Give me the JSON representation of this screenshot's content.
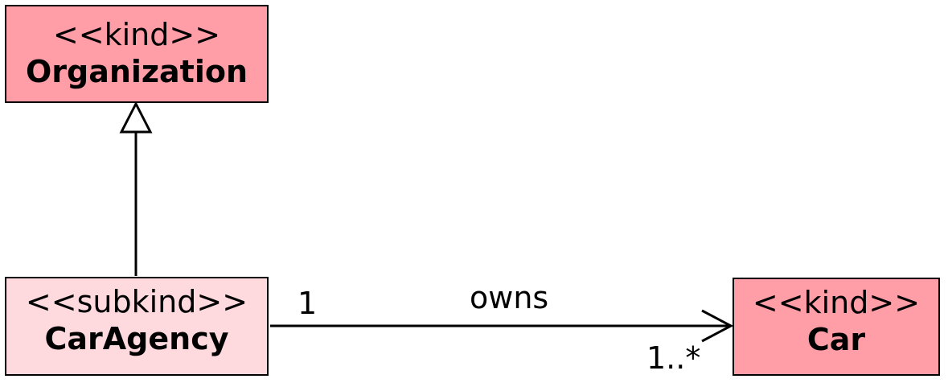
{
  "colors": {
    "kind_fill": "#ff9ea7",
    "subkind_fill": "#fedadf",
    "line": "#000000"
  },
  "classes": {
    "organization": {
      "stereotype": "<<kind>>",
      "name": "Organization"
    },
    "caragency": {
      "stereotype": "<<subkind>>",
      "name": "CarAgency"
    },
    "car": {
      "stereotype": "<<kind>>",
      "name": "Car"
    }
  },
  "generalization": {
    "from": "CarAgency",
    "to": "Organization"
  },
  "association": {
    "from": "CarAgency",
    "to": "Car",
    "name": "owns",
    "source_multiplicity": "1",
    "target_multiplicity": "1..*"
  }
}
